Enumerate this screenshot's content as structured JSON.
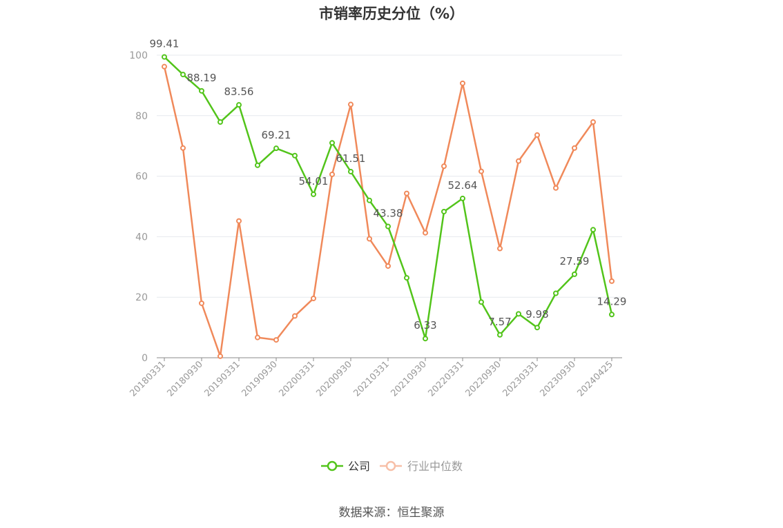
{
  "chart_data": {
    "type": "line",
    "title": "市销率历史分位（%）",
    "source": "数据来源：恒生聚源",
    "ylim": [
      0,
      100
    ],
    "yticks": [
      0,
      20,
      40,
      60,
      80,
      100
    ],
    "grid": true,
    "legend_position": "bottom",
    "x": [
      "20180331",
      "20180630",
      "20180930",
      "20181231",
      "20190331",
      "20190630",
      "20190930",
      "20191231",
      "20200331",
      "20200630",
      "20200930",
      "20201231",
      "20210331",
      "20210630",
      "20210930",
      "20211231",
      "20220331",
      "20220630",
      "20220930",
      "20221231",
      "20230331",
      "20230630",
      "20230930",
      "20231231",
      "20240425"
    ],
    "x_tick_labels": [
      "20180331",
      "20180930",
      "20190331",
      "20190930",
      "20200331",
      "20200930",
      "20210331",
      "20210930",
      "20220331",
      "20220930",
      "20230331",
      "20230930",
      "20240425"
    ],
    "series": [
      {
        "name": "公司",
        "color": "#52c41a",
        "values": [
          99.41,
          93.6,
          88.19,
          77.9,
          83.56,
          63.6,
          69.21,
          66.8,
          54.01,
          71.0,
          61.51,
          52.0,
          43.38,
          26.4,
          6.33,
          48.3,
          52.64,
          18.4,
          7.57,
          14.5,
          9.98,
          21.3,
          27.59,
          42.3,
          14.29
        ],
        "labels": {
          "0": "99.41",
          "2": "88.19",
          "4": "83.56",
          "6": "69.21",
          "8": "54.01",
          "10": "61.51",
          "12": "43.38",
          "14": "6.33",
          "16": "52.64",
          "18": "7.57",
          "20": "9.98",
          "22": "27.59",
          "24": "14.29"
        }
      },
      {
        "name": "行业中位数",
        "color": "#f0895a",
        "values": [
          96.2,
          69.3,
          18.0,
          0.5,
          45.2,
          6.7,
          5.9,
          13.8,
          19.6,
          60.6,
          83.7,
          39.3,
          30.3,
          54.3,
          41.3,
          63.3,
          90.7,
          61.6,
          36.1,
          65.0,
          73.6,
          56.1,
          69.3,
          77.9,
          25.3
        ]
      }
    ]
  }
}
